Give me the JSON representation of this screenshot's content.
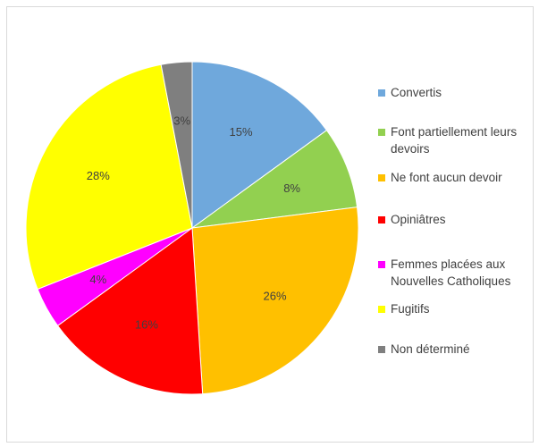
{
  "chart_data": {
    "type": "pie",
    "title": "",
    "slices": [
      {
        "label": "Convertis",
        "value": 15,
        "display": "15%",
        "color": "#6fa8dc"
      },
      {
        "label": "Font partiellement leurs devoirs",
        "value": 8,
        "display": "8%",
        "color": "#92d050"
      },
      {
        "label": "Ne font aucun devoir",
        "value": 26,
        "display": "26%",
        "color": "#ffc000"
      },
      {
        "label": "Opiniâtres",
        "value": 16,
        "display": "16%",
        "color": "#ff0000"
      },
      {
        "label": "Femmes placées aux Nouvelles Catholiques",
        "value": 4,
        "display": "4%",
        "color": "#ff00ff"
      },
      {
        "label": "Fugitifs",
        "value": 28,
        "display": "28%",
        "color": "#ffff00"
      },
      {
        "label": "Non déterminé",
        "value": 3,
        "display": "3%",
        "color": "#7f7f7f"
      }
    ],
    "legend_position": "right",
    "start_angle_deg": 0,
    "direction": "clockwise"
  }
}
